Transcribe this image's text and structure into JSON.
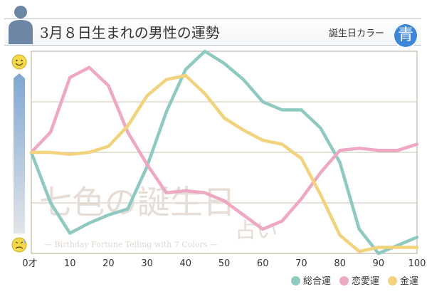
{
  "header": {
    "title": "3月８日生まれの男性の運勢",
    "color_label": "誕生日カラー",
    "color_badge": "青",
    "color_badge_hex": "#3b86d6"
  },
  "watermark": {
    "main": "七色の誕生日",
    "sub": "占い",
    "tagline": "— Birthday Fortune Telling with 7 Colors —"
  },
  "chart_data": {
    "type": "line",
    "x": [
      0,
      5,
      10,
      15,
      20,
      25,
      30,
      35,
      40,
      45,
      50,
      55,
      60,
      65,
      70,
      75,
      80,
      85,
      90,
      95,
      100
    ],
    "x_ticks": [
      0,
      10,
      20,
      30,
      40,
      50,
      60,
      70,
      80,
      90,
      100
    ],
    "x_tick_labels": [
      "0才",
      "10",
      "20",
      "30",
      "40",
      "50",
      "60",
      "70",
      "80",
      "90",
      "100"
    ],
    "ylim": [
      0,
      100
    ],
    "y_axis": "top = good (smiley), bottom = bad (worried face)",
    "grid": "horizontal",
    "legend_position": "bottom-right",
    "series": [
      {
        "name": "総合運",
        "color": "#8fcac1",
        "values": [
          50,
          25,
          10,
          15,
          19,
          22,
          43,
          70,
          91,
          100,
          94,
          86,
          75,
          71,
          71,
          62,
          45,
          12,
          0,
          4,
          8
        ]
      },
      {
        "name": "恋愛運",
        "color": "#eea8c1",
        "values": [
          50,
          60,
          87,
          92,
          83,
          60,
          44,
          30,
          31,
          30,
          26,
          19,
          12,
          16,
          27,
          40,
          51,
          52,
          51,
          51,
          54
        ]
      },
      {
        "name": "金運",
        "color": "#f2d27d",
        "values": [
          50,
          50,
          49,
          50,
          53,
          63,
          78,
          86,
          88,
          79,
          67,
          61,
          56,
          54,
          47,
          29,
          9,
          1,
          3,
          3,
          3
        ]
      }
    ]
  }
}
